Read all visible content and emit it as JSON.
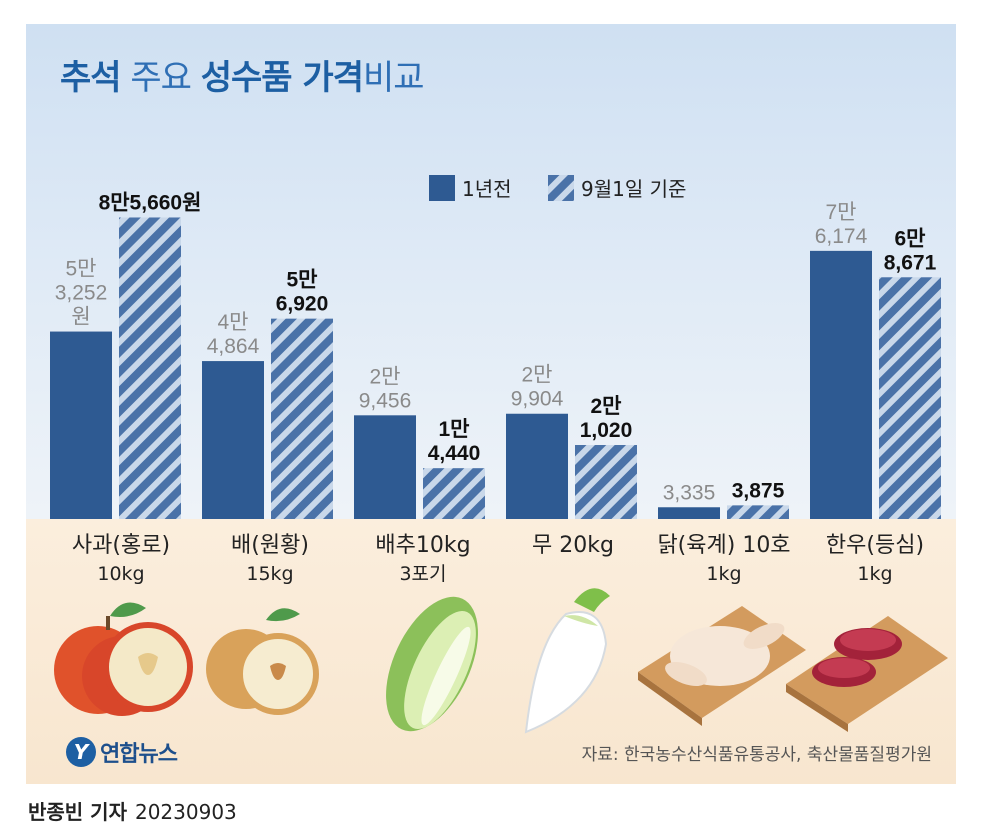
{
  "title": {
    "part1": "추석",
    "part2": " 주요 ",
    "part3": "성수품 가격",
    "part4": "비교"
  },
  "legend": {
    "prev": "1년전",
    "cur": "9월1일 기준"
  },
  "colors": {
    "prev": "#2e5a92",
    "cur_stripe_a": "#4a72a8",
    "cur_stripe_b": "#c9d8ea",
    "title": "#1d5fa3"
  },
  "chart_data": {
    "type": "bar",
    "categories": [
      "사과(홍로) 10kg",
      "배(원황) 15kg",
      "배추10kg 3포기",
      "무 20kg",
      "닭(육계) 10호 1kg",
      "한우(등심) 1kg"
    ],
    "series": [
      {
        "name": "1년전",
        "values": [
          53252,
          44864,
          29456,
          29904,
          3335,
          76174
        ]
      },
      {
        "name": "9월1일 기준",
        "values": [
          85660,
          56920,
          14440,
          21020,
          3875,
          68671
        ]
      }
    ],
    "value_labels": {
      "prev": [
        [
          "5만",
          "3,252",
          "원"
        ],
        [
          "4만",
          "4,864"
        ],
        [
          "2만",
          "9,456"
        ],
        [
          "2만",
          "9,904"
        ],
        [
          "3,335"
        ],
        [
          "7만",
          "6,174"
        ]
      ],
      "cur": [
        [
          "8만5,660원"
        ],
        [
          "5만",
          "6,920"
        ],
        [
          "1만",
          "4,440"
        ],
        [
          "2만",
          "1,020"
        ],
        [
          "3,875"
        ],
        [
          "6만",
          "8,671"
        ]
      ]
    },
    "unit": "원",
    "ylim": [
      0,
      100000
    ]
  },
  "categories": [
    {
      "name": "사과(홍로)",
      "sub": "10kg"
    },
    {
      "name": "배(원황)",
      "sub": "15kg"
    },
    {
      "name": "배추10kg",
      "sub": "3포기"
    },
    {
      "name": "무 20kg",
      "sub": ""
    },
    {
      "name": "닭(육계) 10호",
      "sub": "1kg"
    },
    {
      "name": "한우(등심)",
      "sub": "1kg"
    }
  ],
  "logo": {
    "text": "연합뉴스"
  },
  "source": "자료: 한국농수산식품유통공사, 축산물품질평가원",
  "byline": {
    "name": "반종빈 기자",
    "date": "20230903"
  }
}
